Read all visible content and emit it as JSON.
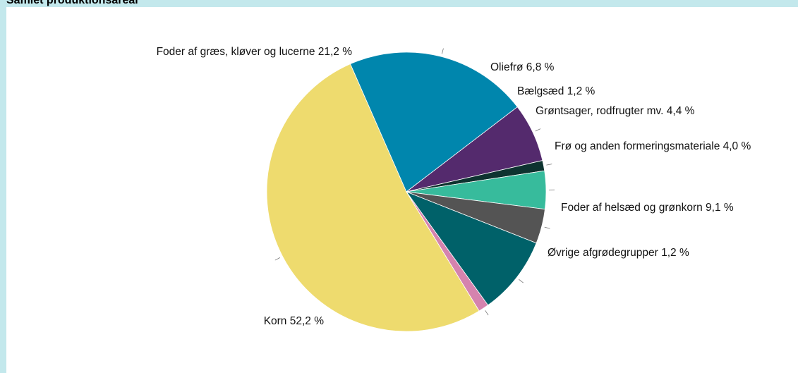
{
  "title": "Samlet produktionsareal",
  "chart_data": {
    "type": "pie",
    "title": "Samlet produktionsareal",
    "legend": "none",
    "slices": [
      {
        "label": "Korn",
        "value": 52.2,
        "value_text": "52,2 %",
        "color": "#eedb6e"
      },
      {
        "label": "Foder af græs, kløver og lucerne",
        "value": 21.2,
        "value_text": "21,2 %",
        "color": "#0086ad"
      },
      {
        "label": "Oliefrø",
        "value": 6.8,
        "value_text": "6,8 %",
        "color": "#542a6d"
      },
      {
        "label": "Bælgsæd",
        "value": 1.2,
        "value_text": "1,2 %",
        "color": "#0e3330"
      },
      {
        "label": "Grøntsager, rodfrugter mv.",
        "value": 4.4,
        "value_text": "4,4 %",
        "color": "#37bb9c"
      },
      {
        "label": "Frø og anden formeringsmateriale",
        "value": 4.0,
        "value_text": "4,0 %",
        "color": "#545454"
      },
      {
        "label": "Foder af helsæd og grønkorn",
        "value": 9.1,
        "value_text": "9,1 %",
        "color": "#006169"
      },
      {
        "label": "Øvrige afgrødegrupper",
        "value": 1.2,
        "value_text": "1,2 %",
        "color": "#d583ae"
      }
    ]
  }
}
